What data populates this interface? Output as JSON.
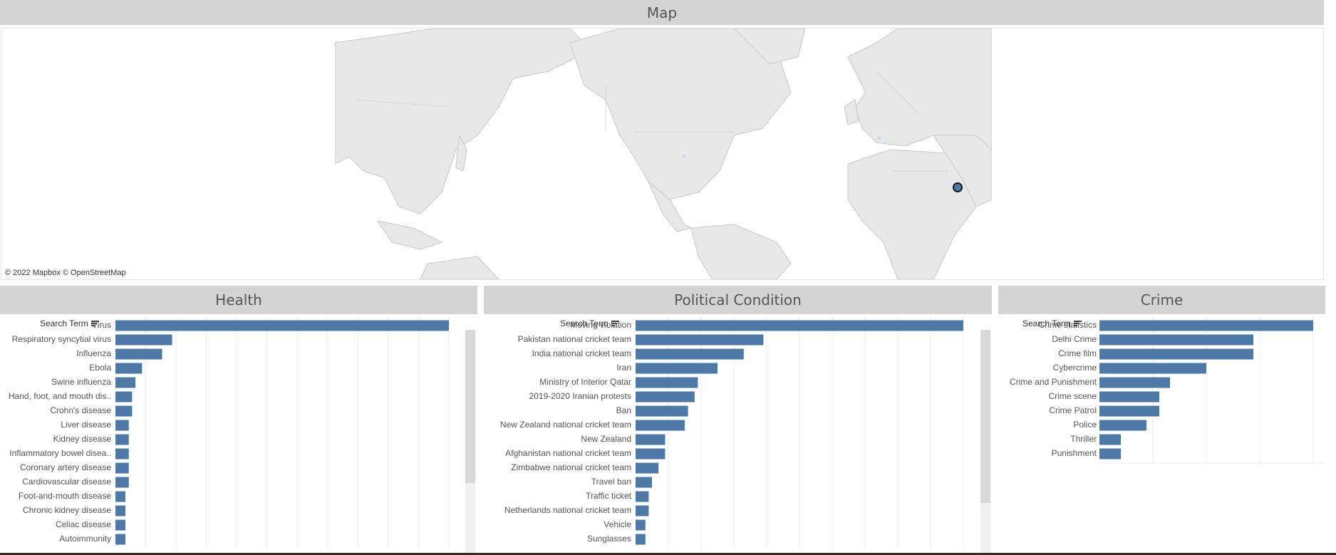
{
  "map": {
    "title": "Map",
    "attribution": "© 2022 Mapbox  © OpenStreetMap",
    "land_color": "#e6e6e6",
    "highlight_color": "#4e79a7"
  },
  "headers": {
    "health": "Health",
    "political": "Political Condition",
    "crime": "Crime"
  },
  "sort_label": "Search Term",
  "bar_color": "#4e79a7",
  "chart_data": [
    {
      "type": "bar",
      "orientation": "horizontal",
      "title": "Health",
      "ylabel": "Search Term",
      "categories": [
        "Virus",
        "Respiratory syncytial virus",
        "Influenza",
        "Ebola",
        "Swine influenza",
        "Hand, foot, and mouth dis..",
        "Crohn's disease",
        "Liver disease",
        "Kidney disease",
        "Inflammatory bowel disea..",
        "Coronary artery disease",
        "Cardiovascular disease",
        "Foot-and-mouth disease",
        "Chronic kidney disease",
        "Celiac disease",
        "Autoimmunity"
      ],
      "values": [
        100,
        17,
        14,
        8,
        6,
        5,
        5,
        4,
        4,
        4,
        4,
        4,
        3,
        3,
        3,
        3
      ],
      "xlim": [
        0,
        100
      ]
    },
    {
      "type": "bar",
      "orientation": "horizontal",
      "title": "Political Condition",
      "ylabel": "Search Term",
      "categories": [
        "Moving violation",
        "Pakistan national cricket team",
        "India national cricket team",
        "Iran",
        "Ministry of Interior Qatar",
        "2019-2020 Iranian protests",
        "Ban",
        "New Zealand national cricket team",
        "New Zealand",
        "Afghanistan national cricket team",
        "Zimbabwe national cricket team",
        "Travel ban",
        "Traffic ticket",
        "Netherlands national cricket team",
        "Vehicle",
        "Sunglasses"
      ],
      "values": [
        100,
        39,
        33,
        25,
        19,
        18,
        16,
        15,
        9,
        9,
        7,
        5,
        4,
        4,
        3,
        3
      ],
      "xlim": [
        0,
        100
      ]
    },
    {
      "type": "bar",
      "orientation": "horizontal",
      "title": "Crime",
      "ylabel": "Search Term",
      "categories": [
        "Crime statistics",
        "Delhi Crime",
        "Crime film",
        "Cybercrime",
        "Crime and Punishment",
        "Crime scene",
        "Crime Patrol",
        "Police",
        "Thriller",
        "Punishment"
      ],
      "values": [
        100,
        72,
        72,
        50,
        33,
        28,
        28,
        22,
        10,
        10
      ],
      "xlim": [
        0,
        100
      ]
    }
  ]
}
